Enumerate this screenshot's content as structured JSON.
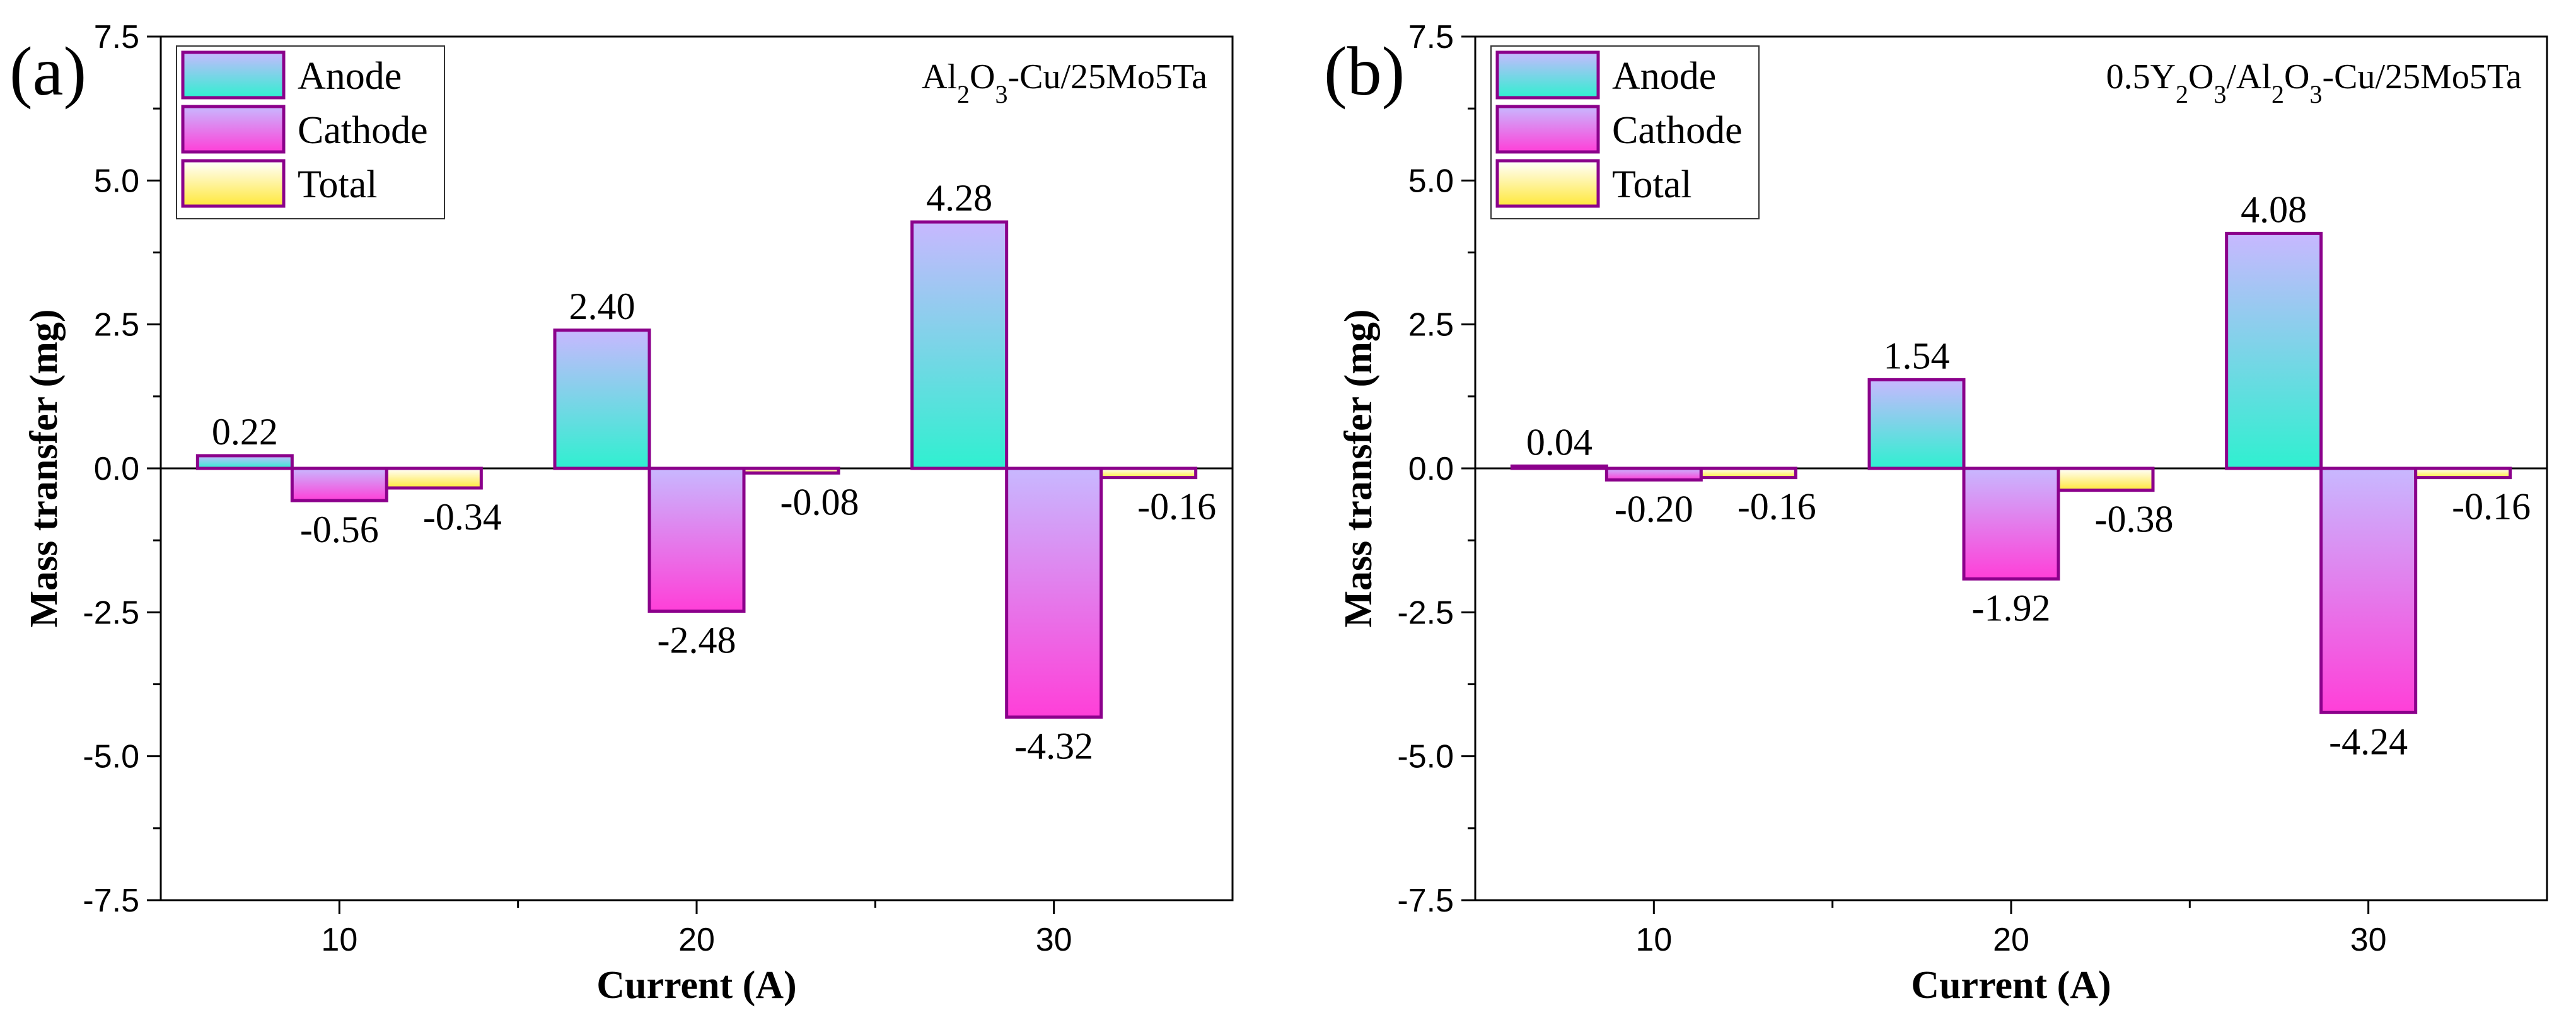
{
  "colors": {
    "anode_top": "#c8b8ff",
    "anode_bottom": "#2ff0d0",
    "cathode_top": "#c8b8ff",
    "cathode_bottom": "#ff3fd8",
    "total_top": "#ffffff",
    "total_bottom": "#ffe83a",
    "bar_edge": "#8b008b",
    "axis": "#000000"
  },
  "chart_data": [
    {
      "type": "bar",
      "panel_label": "(a)",
      "annotation": {
        "parts": [
          "Al",
          "2",
          "O",
          "3",
          "-Cu/25Mo5Ta"
        ]
      },
      "categories": [
        "10",
        "20",
        "30"
      ],
      "series": [
        {
          "name": "Anode",
          "values": [
            0.22,
            2.4,
            4.28
          ],
          "labels": [
            "0.22",
            "2.40",
            "4.28"
          ]
        },
        {
          "name": "Cathode",
          "values": [
            -0.56,
            -2.48,
            -4.32
          ],
          "labels": [
            "-0.56",
            "-2.48",
            "-4.32"
          ]
        },
        {
          "name": "Total",
          "values": [
            -0.34,
            -0.08,
            -0.16
          ],
          "labels": [
            "-0.34",
            "-0.08",
            "-0.16"
          ]
        }
      ],
      "xlabel": "Current (A)",
      "ylabel": "Mass transfer (mg)",
      "ylim": [
        -7.5,
        7.5
      ],
      "yticks": [
        -7.5,
        -5.0,
        -2.5,
        0.0,
        2.5,
        5.0,
        7.5
      ],
      "ytick_labels": [
        "-7.5",
        "-5.0",
        "-2.5",
        "0.0",
        "2.5",
        "5.0",
        "7.5"
      ],
      "legend": [
        "Anode",
        "Cathode",
        "Total"
      ],
      "legend_position": "top-left"
    },
    {
      "type": "bar",
      "panel_label": "(b)",
      "annotation": {
        "parts": [
          "0.5Y",
          "2",
          "O",
          "3",
          "/Al",
          "2",
          "O",
          "3",
          "-Cu/25Mo5Ta"
        ]
      },
      "categories": [
        "10",
        "20",
        "30"
      ],
      "series": [
        {
          "name": "Anode",
          "values": [
            0.04,
            1.54,
            4.08
          ],
          "labels": [
            "0.04",
            "1.54",
            "4.08"
          ]
        },
        {
          "name": "Cathode",
          "values": [
            -0.2,
            -1.92,
            -4.24
          ],
          "labels": [
            "-0.20",
            "-1.92",
            "-4.24"
          ]
        },
        {
          "name": "Total",
          "values": [
            -0.16,
            -0.38,
            -0.16
          ],
          "labels": [
            "-0.16",
            "-0.38",
            "-0.16"
          ]
        }
      ],
      "xlabel": "Current (A)",
      "ylabel": "Mass transfer (mg)",
      "ylim": [
        -7.5,
        7.5
      ],
      "yticks": [
        -7.5,
        -5.0,
        -2.5,
        0.0,
        2.5,
        5.0,
        7.5
      ],
      "ytick_labels": [
        "-7.5",
        "-5.0",
        "-2.5",
        "0.0",
        "2.5",
        "5.0",
        "7.5"
      ],
      "legend": [
        "Anode",
        "Cathode",
        "Total"
      ],
      "legend_position": "top-left"
    }
  ]
}
